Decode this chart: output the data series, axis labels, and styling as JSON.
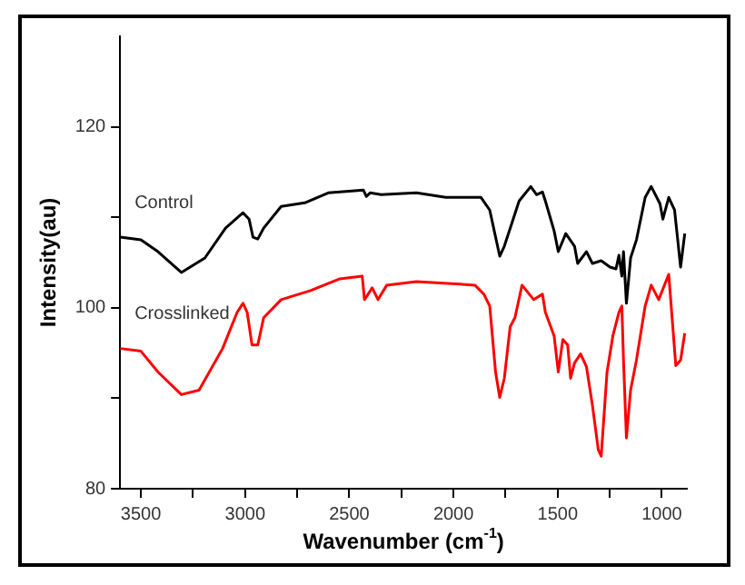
{
  "chart_data": {
    "type": "line",
    "xlabel": "Wavenumber (cm$^{-1}$)",
    "ylabel": "Intensity(au)",
    "xlim": [
      3600,
      880
    ],
    "ylim": [
      80,
      130
    ],
    "xticks": [
      3500,
      {
        "value": 3250,
        "label": null
      },
      3000,
      {
        "value": 2750,
        "label": null
      },
      2500,
      {
        "value": 2250,
        "label": null
      },
      2000,
      {
        "value": 1750,
        "label": null
      },
      1500,
      {
        "value": 1250,
        "label": null
      },
      1000
    ],
    "yticks": [
      80,
      {
        "value": 90,
        "label": null
      },
      100,
      {
        "value": 110,
        "label": null
      },
      120
    ],
    "grid": false,
    "legend": false,
    "marker": "none",
    "line_style": "solid",
    "series": [
      {
        "name": "Control",
        "color": "#000000",
        "x": [
          3600,
          3500,
          3418,
          3306,
          3193,
          3094,
          3010,
          2981,
          2962,
          2939,
          2911,
          2827,
          2714,
          2601,
          2432,
          2418,
          2400,
          2347,
          2178,
          2037,
          1868,
          1826,
          1778,
          1756,
          1722,
          1685,
          1629,
          1601,
          1573,
          1559,
          1517,
          1497,
          1461,
          1419,
          1404,
          1362,
          1333,
          1291,
          1249,
          1220,
          1206,
          1192,
          1184,
          1170,
          1150,
          1122,
          1080,
          1051,
          1009,
          995,
          967,
          939,
          910,
          890
        ],
        "values": [
          107.8,
          107.5,
          106.2,
          103.9,
          105.5,
          108.8,
          110.5,
          109.8,
          107.8,
          107.6,
          108.8,
          111.2,
          111.6,
          112.7,
          113.0,
          112.3,
          112.7,
          112.5,
          112.7,
          112.2,
          112.2,
          110.8,
          105.7,
          106.8,
          109.2,
          111.8,
          113.4,
          112.5,
          112.8,
          111.8,
          108.5,
          106.2,
          108.2,
          106.8,
          104.9,
          106.2,
          104.9,
          105.2,
          104.5,
          104.3,
          105.8,
          103.5,
          106.2,
          100.5,
          105.5,
          107.5,
          112.2,
          113.4,
          111.5,
          109.8,
          112.2,
          110.8,
          104.5,
          108.2
        ]
      },
      {
        "name": "Crosslinked",
        "color": "#ff0000",
        "x": [
          3600,
          3500,
          3418,
          3306,
          3221,
          3108,
          3038,
          3010,
          2990,
          2967,
          2939,
          2911,
          2827,
          2686,
          2545,
          2438,
          2427,
          2390,
          2362,
          2320,
          2178,
          1897,
          1854,
          1826,
          1798,
          1778,
          1756,
          1728,
          1705,
          1671,
          1615,
          1573,
          1559,
          1517,
          1497,
          1475,
          1452,
          1438,
          1419,
          1390,
          1362,
          1333,
          1305,
          1291,
          1263,
          1235,
          1206,
          1192,
          1184,
          1170,
          1150,
          1122,
          1080,
          1051,
          1015,
          967,
          933,
          910,
          890
        ],
        "values": [
          95.5,
          95.2,
          92.9,
          90.4,
          90.9,
          95.5,
          99.5,
          100.5,
          99.5,
          95.9,
          95.9,
          98.9,
          100.9,
          101.9,
          103.2,
          103.5,
          100.9,
          102.2,
          100.9,
          102.5,
          102.9,
          102.5,
          101.5,
          100.2,
          92.9,
          90.1,
          92.2,
          97.9,
          98.9,
          102.5,
          100.9,
          101.5,
          99.5,
          96.9,
          92.9,
          96.5,
          95.9,
          92.2,
          93.9,
          94.9,
          93.5,
          89.2,
          84.3,
          83.6,
          92.9,
          96.9,
          99.5,
          100.2,
          94.2,
          85.6,
          90.9,
          94.2,
          100.2,
          102.5,
          100.9,
          103.7,
          93.6,
          94.2,
          97.2
        ]
      }
    ]
  }
}
